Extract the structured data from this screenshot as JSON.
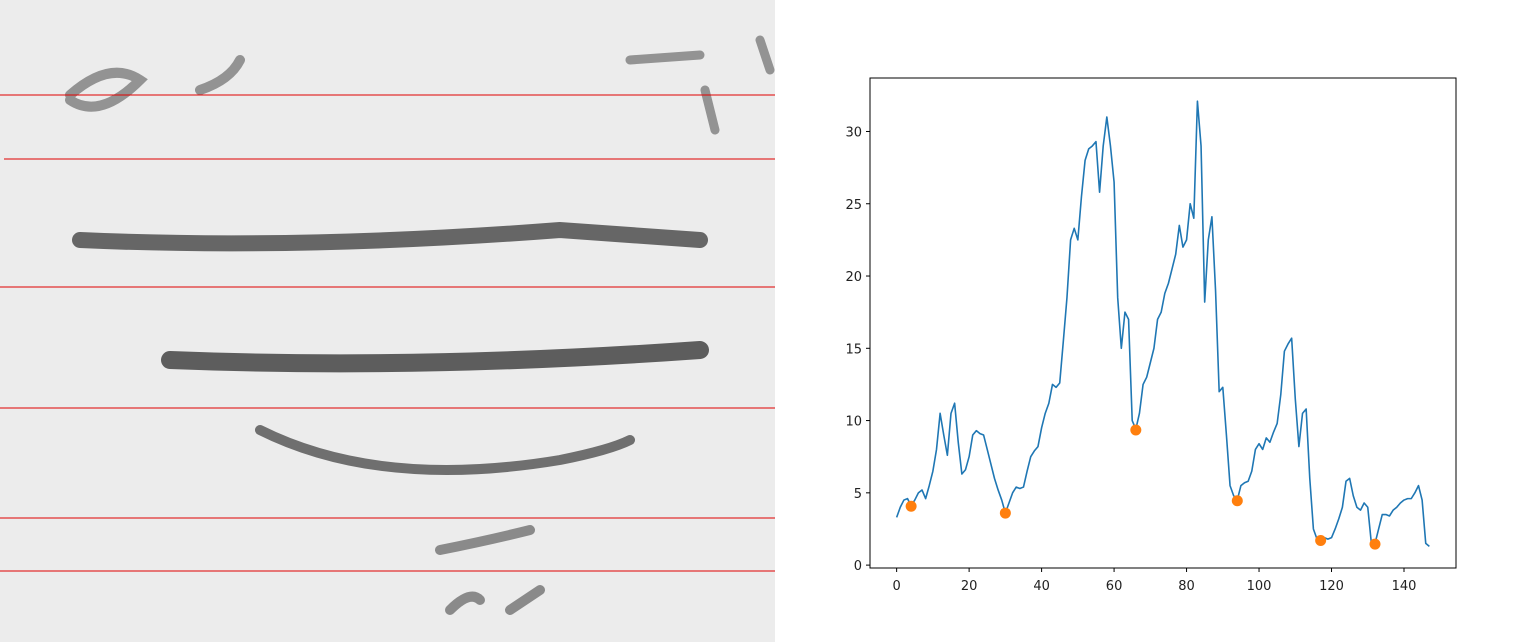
{
  "chart_data": {
    "type": "line",
    "x": [
      0,
      1,
      2,
      3,
      4,
      5,
      6,
      7,
      8,
      9,
      10,
      11,
      12,
      13,
      14,
      15,
      16,
      17,
      18,
      19,
      20,
      21,
      22,
      23,
      24,
      25,
      26,
      27,
      28,
      29,
      30,
      31,
      32,
      33,
      34,
      35,
      36,
      37,
      38,
      39,
      40,
      41,
      42,
      43,
      44,
      45,
      46,
      47,
      48,
      49,
      50,
      51,
      52,
      53,
      54,
      55,
      56,
      57,
      58,
      59,
      60,
      61,
      62,
      63,
      64,
      65,
      66,
      67,
      68,
      69,
      70,
      71,
      72,
      73,
      74,
      75,
      76,
      77,
      78,
      79,
      80,
      81,
      82,
      83,
      84,
      85,
      86,
      87,
      88,
      89,
      90,
      91,
      92,
      93,
      94,
      95,
      96,
      97,
      98,
      99,
      100,
      101,
      102,
      103,
      104,
      105,
      106,
      107,
      108,
      109,
      110,
      111,
      112,
      113,
      114,
      115,
      116,
      117,
      118,
      119,
      120,
      121,
      122,
      123,
      124,
      125,
      126,
      127,
      128,
      129,
      130,
      131,
      132,
      133,
      134,
      135,
      136,
      137,
      138,
      139,
      140,
      141,
      142,
      143,
      144,
      145,
      146,
      147
    ],
    "series": [
      {
        "color": "#1f77b4",
        "values": [
          3.3,
          4.0,
          4.5,
          4.6,
          4.1,
          4.5,
          5.0,
          5.2,
          4.6,
          5.5,
          6.5,
          8.0,
          10.5,
          9.0,
          7.6,
          10.5,
          11.2,
          8.5,
          6.3,
          6.6,
          7.5,
          9.0,
          9.3,
          9.1,
          9.0,
          8.0,
          7.0,
          6.0,
          5.2,
          4.5,
          3.6,
          4.3,
          5.0,
          5.4,
          5.3,
          5.4,
          6.5,
          7.5,
          7.9,
          8.2,
          9.5,
          10.5,
          11.2,
          12.5,
          12.3,
          12.6,
          15.5,
          18.5,
          22.5,
          23.3,
          22.5,
          25.5,
          28.0,
          28.8,
          29.0,
          29.3,
          25.8,
          29.0,
          31.0,
          29.0,
          26.5,
          18.5,
          15.0,
          17.5,
          17.0,
          10.0,
          9.4,
          10.5,
          12.5,
          13.0,
          14.0,
          15.0,
          17.0,
          17.5,
          18.8,
          19.5,
          20.5,
          21.5,
          23.5,
          22.0,
          22.5,
          25.0,
          24.0,
          32.1,
          29.0,
          18.2,
          22.5,
          24.1,
          19.0,
          12.0,
          12.3,
          9.0,
          5.5,
          4.8,
          4.5,
          5.5,
          5.7,
          5.8,
          6.5,
          8.0,
          8.4,
          8.0,
          8.8,
          8.5,
          9.2,
          9.8,
          11.8,
          14.8,
          15.3,
          15.7,
          11.5,
          8.2,
          10.5,
          10.8,
          6.0,
          2.5,
          1.8,
          1.7,
          1.9,
          1.8,
          1.9,
          2.5,
          3.2,
          4.0,
          5.8,
          6.0,
          4.8,
          4.0,
          3.8,
          4.3,
          4.0,
          1.5,
          1.5,
          2.5,
          3.5,
          3.5,
          3.4,
          3.8,
          4.0,
          4.3,
          4.5,
          4.6,
          4.6,
          5.0,
          5.5,
          4.5,
          1.5,
          1.3
        ]
      },
      {
        "type": "scatter",
        "color": "#ff7f0e",
        "x": [
          4,
          30,
          66,
          94,
          117,
          132
        ],
        "values": [
          4.07,
          3.6,
          9.35,
          4.45,
          1.7,
          1.45
        ]
      }
    ],
    "xlim": [
      -7.35,
      154.35
    ],
    "ylim": [
      -0.2,
      33.7
    ],
    "xticks": [
      0,
      20,
      40,
      60,
      80,
      100,
      120,
      140
    ],
    "yticks": [
      0,
      5,
      10,
      15,
      20,
      25,
      30
    ]
  }
}
